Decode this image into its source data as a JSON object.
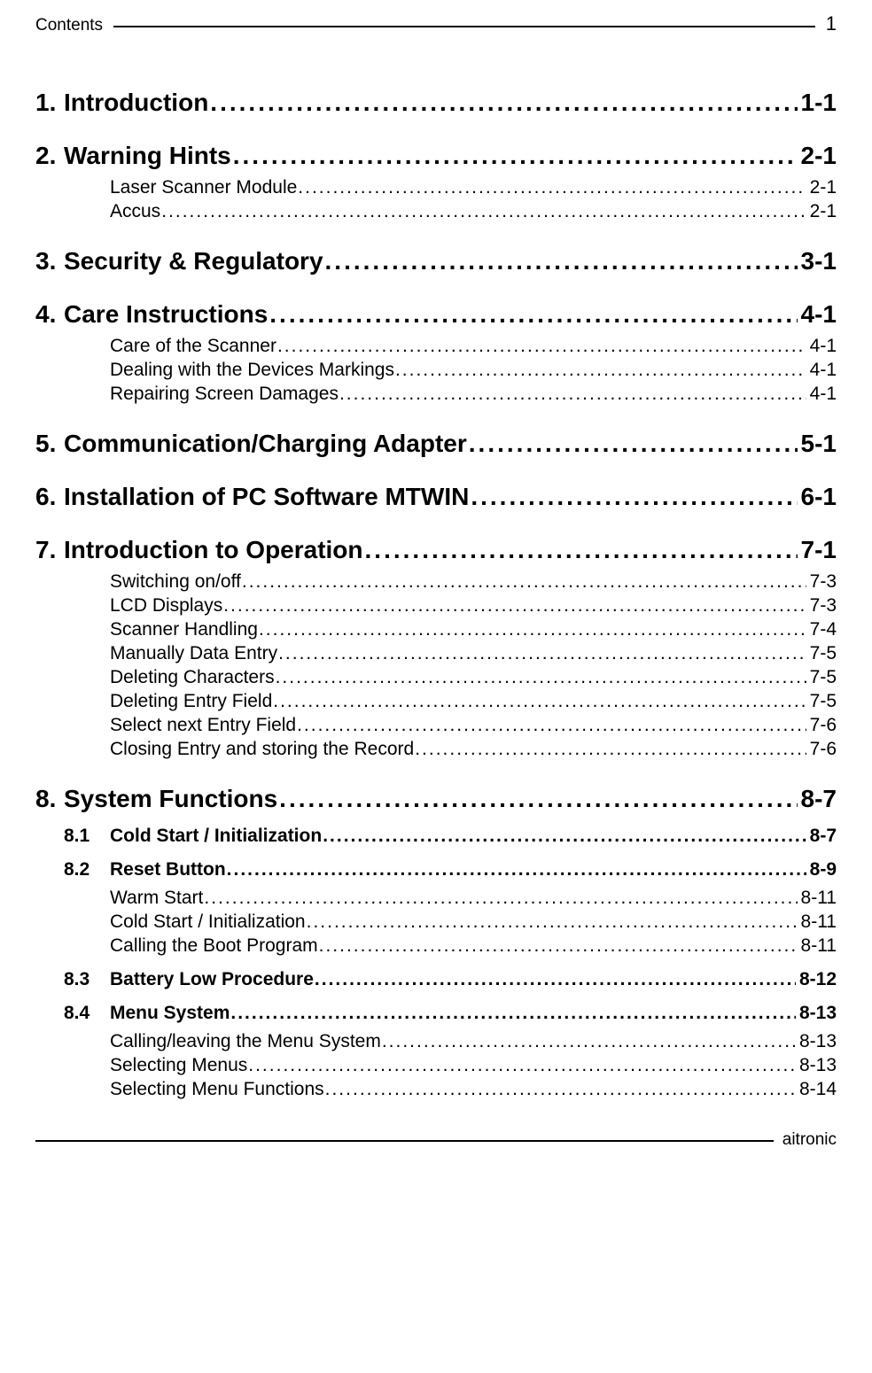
{
  "header": {
    "label": "Contents",
    "page_number": "1"
  },
  "footer": {
    "label": "aitronic"
  },
  "leader_char": ".",
  "sections": [
    {
      "num": "1.",
      "title": "Introduction",
      "page": "1-1",
      "subs": []
    },
    {
      "num": "2.",
      "title": "Warning Hints",
      "page": "2-1",
      "subs": [
        {
          "entries": [
            {
              "title": "Laser Scanner Module",
              "page": "2-1"
            },
            {
              "title": "Accus",
              "page": "2-1"
            }
          ]
        }
      ]
    },
    {
      "num": "3.",
      "title": "Security & Regulatory",
      "page": "3-1",
      "subs": []
    },
    {
      "num": "4.",
      "title": "Care Instructions",
      "page": "4-1",
      "subs": [
        {
          "entries": [
            {
              "title": "Care of the Scanner",
              "page": "4-1"
            },
            {
              "title": "Dealing with the Devices Markings",
              "page": "4-1"
            },
            {
              "title": "Repairing Screen Damages",
              "page": "4-1"
            }
          ]
        }
      ]
    },
    {
      "num": "5.",
      "title": "Communication/Charging Adapter",
      "page": "5-1",
      "subs": []
    },
    {
      "num": "6.",
      "title": "Installation of PC Software MTWIN",
      "page": "6-1",
      "subs": []
    },
    {
      "num": "7.",
      "title": "Introduction to Operation",
      "page": "7-1",
      "subs": [
        {
          "entries": [
            {
              "title": "Switching on/off",
              "page": "7-3"
            },
            {
              "title": "LCD Displays",
              "page": "7-3"
            },
            {
              "title": "Scanner Handling",
              "page": "7-4"
            },
            {
              "title": "Manually Data Entry",
              "page": "7-5"
            },
            {
              "title": "Deleting Characters",
              "page": "7-5"
            },
            {
              "title": "Deleting Entry Field",
              "page": "7-5"
            },
            {
              "title": "Select next Entry Field",
              "page": "7-6"
            },
            {
              "title": "Closing Entry and storing the Record",
              "page": "7-6"
            }
          ]
        }
      ]
    },
    {
      "num": "8.",
      "title": "System Functions",
      "page": "8-7",
      "subs": [
        {
          "num": "8.1",
          "title": "Cold Start / Initialization",
          "page": "8-7",
          "entries": []
        },
        {
          "num": "8.2",
          "title": "Reset Button",
          "page": "8-9",
          "entries": [
            {
              "title": "Warm Start",
              "page": "8-11"
            },
            {
              "title": "Cold Start / Initialization",
              "page": "8-11"
            },
            {
              "title": "Calling the Boot Program",
              "page": "8-11"
            }
          ]
        },
        {
          "num": "8.3",
          "title": "Battery Low Procedure",
          "page": "8-12",
          "entries": []
        },
        {
          "num": "8.4",
          "title": "Menu System",
          "page": "8-13",
          "entries": [
            {
              "title": "Calling/leaving the Menu System",
              "page": "8-13"
            },
            {
              "title": "Selecting Menus",
              "page": "8-13"
            },
            {
              "title": "Selecting Menu Functions",
              "page": "8-14"
            }
          ]
        }
      ]
    }
  ]
}
